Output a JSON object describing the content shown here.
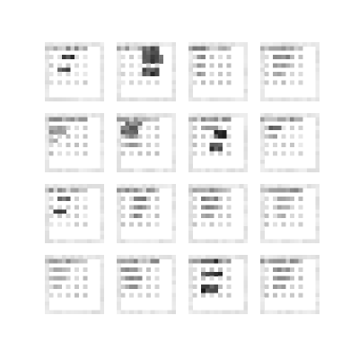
{
  "figure": {
    "background_color": "#ffffff",
    "rows": 4,
    "cols": 4,
    "tile_pixels": 14,
    "tiles": [
      {
        "row": 0,
        "col": 0,
        "pattern": "dots",
        "blobs": [
          {
            "r": 3,
            "c": 4,
            "w": 3,
            "h": 1,
            "ink": 0.85
          },
          {
            "r": 6,
            "c": 3,
            "w": 3,
            "h": 1,
            "ink": 0.9
          }
        ]
      },
      {
        "row": 0,
        "col": 1,
        "pattern": "dots",
        "blobs": [
          {
            "r": 1,
            "c": 6,
            "w": 4,
            "h": 2,
            "ink": 0.75
          },
          {
            "r": 3,
            "c": 6,
            "w": 5,
            "h": 2,
            "ink": 0.8
          },
          {
            "r": 6,
            "c": 6,
            "w": 4,
            "h": 2,
            "ink": 0.85
          }
        ]
      },
      {
        "row": 0,
        "col": 2,
        "pattern": "dense",
        "blobs": [
          {
            "r": 1,
            "c": 1,
            "w": 3,
            "h": 1,
            "ink": 0.55
          },
          {
            "r": 3,
            "c": 2,
            "w": 2,
            "h": 1,
            "ink": 0.5
          },
          {
            "r": 5,
            "c": 2,
            "w": 2,
            "h": 1,
            "ink": 0.5
          },
          {
            "r": 7,
            "c": 2,
            "w": 2,
            "h": 1,
            "ink": 0.45
          }
        ]
      },
      {
        "row": 0,
        "col": 3,
        "pattern": "dense",
        "blobs": [
          {
            "r": 1,
            "c": 3,
            "w": 4,
            "h": 1,
            "ink": 0.45
          },
          {
            "r": 3,
            "c": 3,
            "w": 4,
            "h": 1,
            "ink": 0.55
          },
          {
            "r": 5,
            "c": 3,
            "w": 4,
            "h": 1,
            "ink": 0.45
          },
          {
            "r": 7,
            "c": 3,
            "w": 3,
            "h": 1,
            "ink": 0.4
          }
        ]
      },
      {
        "row": 1,
        "col": 0,
        "pattern": "dense",
        "blobs": [
          {
            "r": 1,
            "c": 1,
            "w": 3,
            "h": 1,
            "ink": 0.5
          },
          {
            "r": 3,
            "c": 1,
            "w": 4,
            "h": 1,
            "ink": 0.45
          },
          {
            "r": 4,
            "c": 1,
            "w": 4,
            "h": 1,
            "ink": 0.5
          },
          {
            "r": 6,
            "c": 1,
            "w": 2,
            "h": 1,
            "ink": 0.35
          }
        ]
      },
      {
        "row": 1,
        "col": 1,
        "pattern": "dense",
        "blobs": [
          {
            "r": 2,
            "c": 2,
            "w": 4,
            "h": 1,
            "ink": 0.6
          },
          {
            "r": 3,
            "c": 1,
            "w": 4,
            "h": 2,
            "ink": 0.7
          },
          {
            "r": 5,
            "c": 2,
            "w": 3,
            "h": 1,
            "ink": 0.55
          },
          {
            "r": 7,
            "c": 2,
            "w": 3,
            "h": 1,
            "ink": 0.45
          }
        ]
      },
      {
        "row": 1,
        "col": 2,
        "pattern": "dense",
        "blobs": [
          {
            "r": 1,
            "c": 3,
            "w": 3,
            "h": 1,
            "ink": 0.45
          },
          {
            "r": 3,
            "c": 3,
            "w": 4,
            "h": 1,
            "ink": 0.5
          },
          {
            "r": 4,
            "c": 6,
            "w": 3,
            "h": 2,
            "ink": 0.9
          },
          {
            "r": 7,
            "c": 5,
            "w": 3,
            "h": 2,
            "ink": 0.9
          }
        ]
      },
      {
        "row": 1,
        "col": 3,
        "pattern": "dots",
        "blobs": [
          {
            "r": 1,
            "c": 4,
            "w": 2,
            "h": 1,
            "ink": 0.4
          },
          {
            "r": 3,
            "c": 2,
            "w": 3,
            "h": 1,
            "ink": 0.8
          },
          {
            "r": 5,
            "c": 2,
            "w": 2,
            "h": 1,
            "ink": 0.4
          }
        ]
      },
      {
        "row": 2,
        "col": 0,
        "pattern": "dots",
        "blobs": [
          {
            "r": 3,
            "c": 3,
            "w": 3,
            "h": 1,
            "ink": 0.75
          },
          {
            "r": 6,
            "c": 2,
            "w": 3,
            "h": 1,
            "ink": 0.8
          }
        ]
      },
      {
        "row": 2,
        "col": 1,
        "pattern": "dense",
        "blobs": [
          {
            "r": 1,
            "c": 2,
            "w": 3,
            "h": 1,
            "ink": 0.4
          },
          {
            "r": 3,
            "c": 4,
            "w": 3,
            "h": 1,
            "ink": 0.55
          },
          {
            "r": 5,
            "c": 4,
            "w": 3,
            "h": 1,
            "ink": 0.55
          },
          {
            "r": 7,
            "c": 4,
            "w": 2,
            "h": 1,
            "ink": 0.5
          }
        ]
      },
      {
        "row": 2,
        "col": 2,
        "pattern": "dense",
        "blobs": [
          {
            "r": 1,
            "c": 3,
            "w": 3,
            "h": 1,
            "ink": 0.45
          },
          {
            "r": 3,
            "c": 3,
            "w": 4,
            "h": 1,
            "ink": 0.55
          },
          {
            "r": 5,
            "c": 3,
            "w": 4,
            "h": 1,
            "ink": 0.55
          },
          {
            "r": 7,
            "c": 3,
            "w": 3,
            "h": 1,
            "ink": 0.45
          }
        ]
      },
      {
        "row": 2,
        "col": 3,
        "pattern": "dense",
        "blobs": [
          {
            "r": 1,
            "c": 3,
            "w": 4,
            "h": 1,
            "ink": 0.4
          },
          {
            "r": 3,
            "c": 4,
            "w": 3,
            "h": 1,
            "ink": 0.45
          },
          {
            "r": 5,
            "c": 4,
            "w": 3,
            "h": 1,
            "ink": 0.45
          },
          {
            "r": 7,
            "c": 4,
            "w": 2,
            "h": 1,
            "ink": 0.35
          }
        ]
      },
      {
        "row": 3,
        "col": 0,
        "pattern": "dense",
        "blobs": [
          {
            "r": 1,
            "c": 1,
            "w": 3,
            "h": 1,
            "ink": 0.45
          },
          {
            "r": 3,
            "c": 2,
            "w": 3,
            "h": 1,
            "ink": 0.4
          },
          {
            "r": 5,
            "c": 2,
            "w": 3,
            "h": 1,
            "ink": 0.4
          },
          {
            "r": 7,
            "c": 2,
            "w": 2,
            "h": 1,
            "ink": 0.35
          }
        ]
      },
      {
        "row": 3,
        "col": 1,
        "pattern": "dense",
        "blobs": [
          {
            "r": 1,
            "c": 1,
            "w": 4,
            "h": 1,
            "ink": 0.5
          },
          {
            "r": 3,
            "c": 1,
            "w": 4,
            "h": 1,
            "ink": 0.5
          },
          {
            "r": 5,
            "c": 2,
            "w": 4,
            "h": 1,
            "ink": 0.5
          },
          {
            "r": 7,
            "c": 2,
            "w": 3,
            "h": 1,
            "ink": 0.45
          }
        ]
      },
      {
        "row": 3,
        "col": 2,
        "pattern": "dense",
        "blobs": [
          {
            "r": 1,
            "c": 3,
            "w": 4,
            "h": 1,
            "ink": 0.9
          },
          {
            "r": 4,
            "c": 3,
            "w": 5,
            "h": 1,
            "ink": 0.9
          },
          {
            "r": 7,
            "c": 3,
            "w": 4,
            "h": 2,
            "ink": 0.9
          }
        ]
      },
      {
        "row": 3,
        "col": 3,
        "pattern": "dense",
        "blobs": [
          {
            "r": 1,
            "c": 2,
            "w": 4,
            "h": 1,
            "ink": 0.45
          },
          {
            "r": 3,
            "c": 3,
            "w": 4,
            "h": 1,
            "ink": 0.5
          },
          {
            "r": 5,
            "c": 3,
            "w": 4,
            "h": 1,
            "ink": 0.5
          },
          {
            "r": 7,
            "c": 3,
            "w": 3,
            "h": 1,
            "ink": 0.45
          }
        ]
      }
    ]
  }
}
